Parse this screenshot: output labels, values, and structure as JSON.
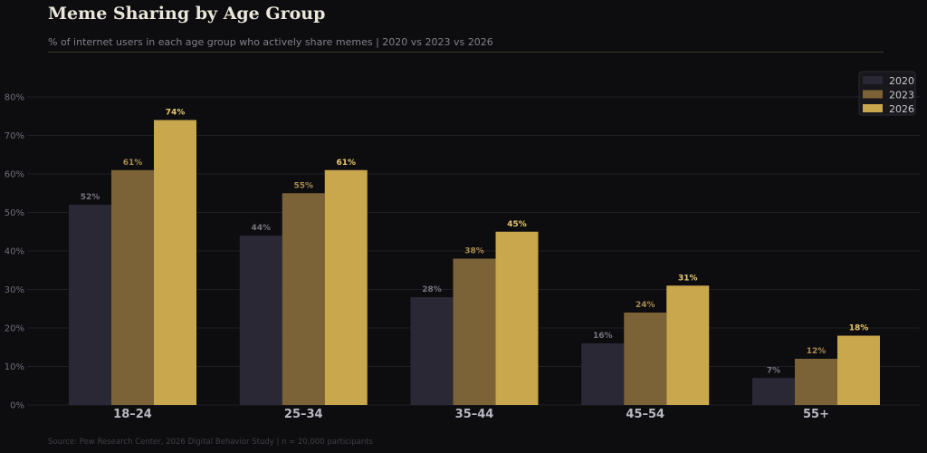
{
  "header": {
    "title": "Meme Sharing by Age Group",
    "subtitle": "% of internet users in each age group who actively share memes  |  2020 vs 2023 vs 2026"
  },
  "footer": {
    "source": "Source: Pew Research Center, 2026 Digital Behavior Study  |  n = 20,000 participants"
  },
  "colors": {
    "background": "#0d0d10",
    "grid": "#1f1f25",
    "series": [
      "#2a2835",
      "#7b6237",
      "#c9a74c"
    ],
    "value_labels": [
      "#76747e",
      "#a88b4e",
      "#e5c76b"
    ]
  },
  "chart_data": {
    "type": "bar",
    "categories": [
      "18–24",
      "25–34",
      "35–44",
      "45–54",
      "55+"
    ],
    "series": [
      {
        "name": "2020",
        "values": [
          52,
          44,
          28,
          16,
          7
        ]
      },
      {
        "name": "2023",
        "values": [
          61,
          55,
          38,
          24,
          12
        ]
      },
      {
        "name": "2026",
        "values": [
          74,
          61,
          45,
          31,
          18
        ]
      }
    ],
    "value_labels": [
      [
        "52%",
        "44%",
        "28%",
        "16%",
        "7%"
      ],
      [
        "61%",
        "55%",
        "38%",
        "24%",
        "12%"
      ],
      [
        "74%",
        "61%",
        "45%",
        "31%",
        "18%"
      ]
    ],
    "yticks": [
      "0%",
      "10%",
      "20%",
      "30%",
      "40%",
      "50%",
      "60%",
      "70%",
      "80%"
    ],
    "ylim": [
      0,
      80
    ],
    "grid": true,
    "legend_position": "top-right",
    "title": "Meme Sharing by Age Group",
    "xlabel": "",
    "ylabel": ""
  }
}
